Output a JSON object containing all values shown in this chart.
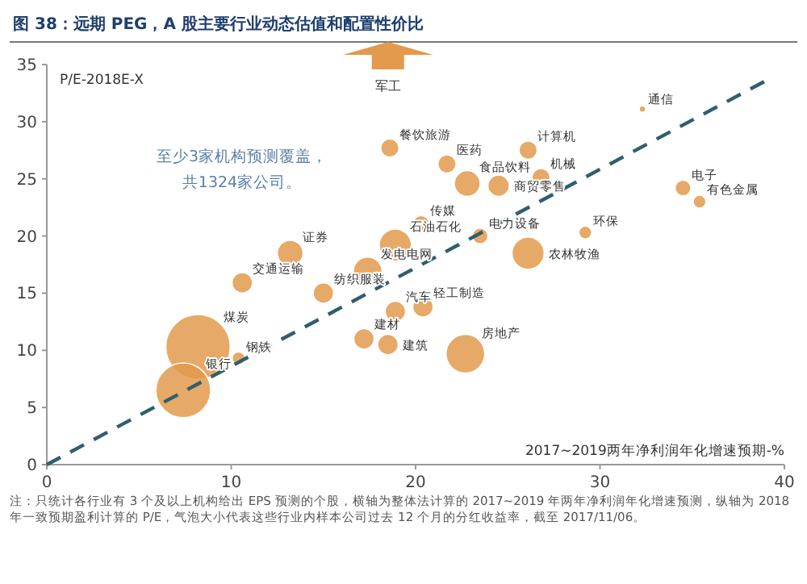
{
  "chart_data": {
    "type": "bubble",
    "title": "图 38：远期 PEG，A 股主要行业动态估值和配置性价比",
    "xlabel": "2017~2019两年净利润年化增速预期-%",
    "ylabel": "P/E-2018E-X",
    "xlim": [
      0,
      40
    ],
    "xticks": [
      0,
      10,
      20,
      30,
      40
    ],
    "ylim": [
      0,
      35
    ],
    "yticks": [
      0,
      5,
      10,
      15,
      20,
      25,
      30,
      35
    ],
    "series": [
      {
        "color": "#e39a4c",
        "x": [
          18.6,
          21.7,
          22.8,
          24.5,
          26.1,
          26.8,
          32.3,
          34.5,
          35.4,
          20.3,
          23.5,
          29.2,
          18.9,
          13.2,
          17.4,
          26.1,
          10.6,
          15.0,
          18.9,
          20.4,
          17.2,
          18.5,
          22.7,
          8.2,
          10.4,
          7.4
        ],
        "values": [
          27.7,
          26.3,
          24.6,
          24.4,
          27.5,
          25.1,
          31.1,
          24.2,
          23.0,
          21.1,
          20.0,
          20.3,
          19.2,
          18.5,
          16.9,
          18.5,
          15.9,
          15.0,
          13.4,
          13.8,
          11.0,
          10.5,
          9.7,
          10.3,
          9.3,
          6.5
        ],
        "sizes": [
          0.08,
          0.08,
          0.16,
          0.11,
          0.08,
          0.08,
          0.01,
          0.06,
          0.04,
          0.06,
          0.06,
          0.04,
          0.25,
          0.16,
          0.2,
          0.25,
          0.1,
          0.1,
          0.1,
          0.1,
          0.1,
          0.1,
          0.36,
          1,
          0.04,
          0.72
        ]
      },
      {
        "type": "line",
        "color": "#2f5f6f",
        "line_style": "dashed",
        "x": [
          0,
          38.9
        ],
        "values": [
          0,
          33.5
        ]
      }
    ],
    "annotations": [
      "至少3家机构预测覆盖，共1324家公司。",
      "注：只统计各行业有 3 个及以上机构给出 EPS 预测的个股，横轴为整体法计算的 2017~2019 年两年净利润年化增速预测，纵轴为 2018 年一致预期盈利计算的 P/E，气泡大小代表这些行业内样本公司过去 12 个月的分红收益率，截至 2017/11/06。",
      "军工",
      {
        "text": "餐饮旅游",
        "x": 18.6,
        "y": 27.7
      },
      {
        "text": "医药",
        "x": 21.7,
        "y": 26.3
      },
      {
        "text": "食品饮料",
        "x": 22.8,
        "y": 24.6
      },
      {
        "text": "商贸零售",
        "x": 24.5,
        "y": 24.4
      },
      {
        "text": "计算机",
        "x": 26.1,
        "y": 27.5
      },
      {
        "text": "机械",
        "x": 26.8,
        "y": 25.1
      },
      {
        "text": "通信",
        "x": 32.3,
        "y": 31.1
      },
      {
        "text": "电子",
        "x": 34.5,
        "y": 24.2
      },
      {
        "text": "有色金属",
        "x": 35.4,
        "y": 23.0
      },
      {
        "text": "传媒",
        "x": 20.3,
        "y": 21.1
      },
      {
        "text": "电力设备",
        "x": 23.5,
        "y": 20.0
      },
      {
        "text": "环保",
        "x": 29.2,
        "y": 20.3
      },
      {
        "text": "石油石化",
        "x": 18.9,
        "y": 19.2
      },
      {
        "text": "证券",
        "x": 13.2,
        "y": 18.5
      },
      {
        "text": "发电电网",
        "x": 17.4,
        "y": 16.9
      },
      {
        "text": "农林牧渔",
        "x": 26.1,
        "y": 18.5
      },
      {
        "text": "交通运输",
        "x": 10.6,
        "y": 15.9
      },
      {
        "text": "纺织服装",
        "x": 15.0,
        "y": 15.0
      },
      {
        "text": "汽车",
        "x": 18.9,
        "y": 13.4
      },
      {
        "text": "轻工制造",
        "x": 20.4,
        "y": 13.8
      },
      {
        "text": "建材",
        "x": 17.2,
        "y": 11.0
      },
      {
        "text": "建筑",
        "x": 18.5,
        "y": 10.5
      },
      {
        "text": "房地产",
        "x": 22.7,
        "y": 9.7
      },
      {
        "text": "煤炭",
        "x": 8.2,
        "y": 10.3
      },
      {
        "text": "钢铁",
        "x": 10.4,
        "y": 9.3
      },
      {
        "text": "银行",
        "x": 7.4,
        "y": 6.5
      }
    ]
  }
}
